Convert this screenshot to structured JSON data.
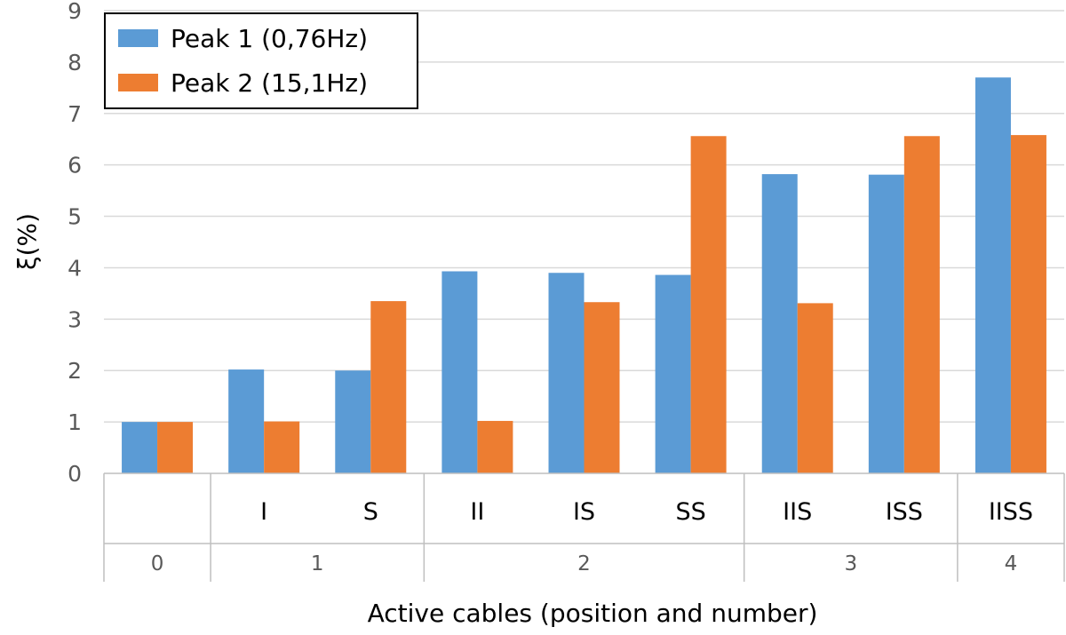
{
  "chart_data": {
    "type": "bar",
    "title": "",
    "xlabel": "Active cables (position and number)",
    "ylabel": "ξ(%)",
    "ylim": [
      0,
      9
    ],
    "yticks": [
      0,
      1,
      2,
      3,
      4,
      5,
      6,
      7,
      8,
      9
    ],
    "grid": true,
    "legend_position": "top-left",
    "categories": [
      "",
      "I",
      "S",
      "II",
      "IS",
      "SS",
      "IIS",
      "ISS",
      "IISS"
    ],
    "groups": [
      {
        "label": "0",
        "categories": [
          ""
        ]
      },
      {
        "label": "1",
        "categories": [
          "I",
          "S"
        ]
      },
      {
        "label": "2",
        "categories": [
          "II",
          "IS",
          "SS"
        ]
      },
      {
        "label": "3",
        "categories": [
          "IIS",
          "ISS"
        ]
      },
      {
        "label": "4",
        "categories": [
          "IISS"
        ]
      }
    ],
    "series": [
      {
        "name": "Peak 1 (0,76Hz)",
        "color": "#5b9bd5",
        "values": [
          1.0,
          2.02,
          2.0,
          3.93,
          3.9,
          3.86,
          5.82,
          5.81,
          7.7
        ]
      },
      {
        "name": "Peak 2 (15,1Hz)",
        "color": "#ed7d31",
        "values": [
          1.0,
          1.01,
          3.35,
          1.02,
          3.33,
          6.56,
          3.31,
          6.56,
          6.58
        ]
      }
    ]
  }
}
